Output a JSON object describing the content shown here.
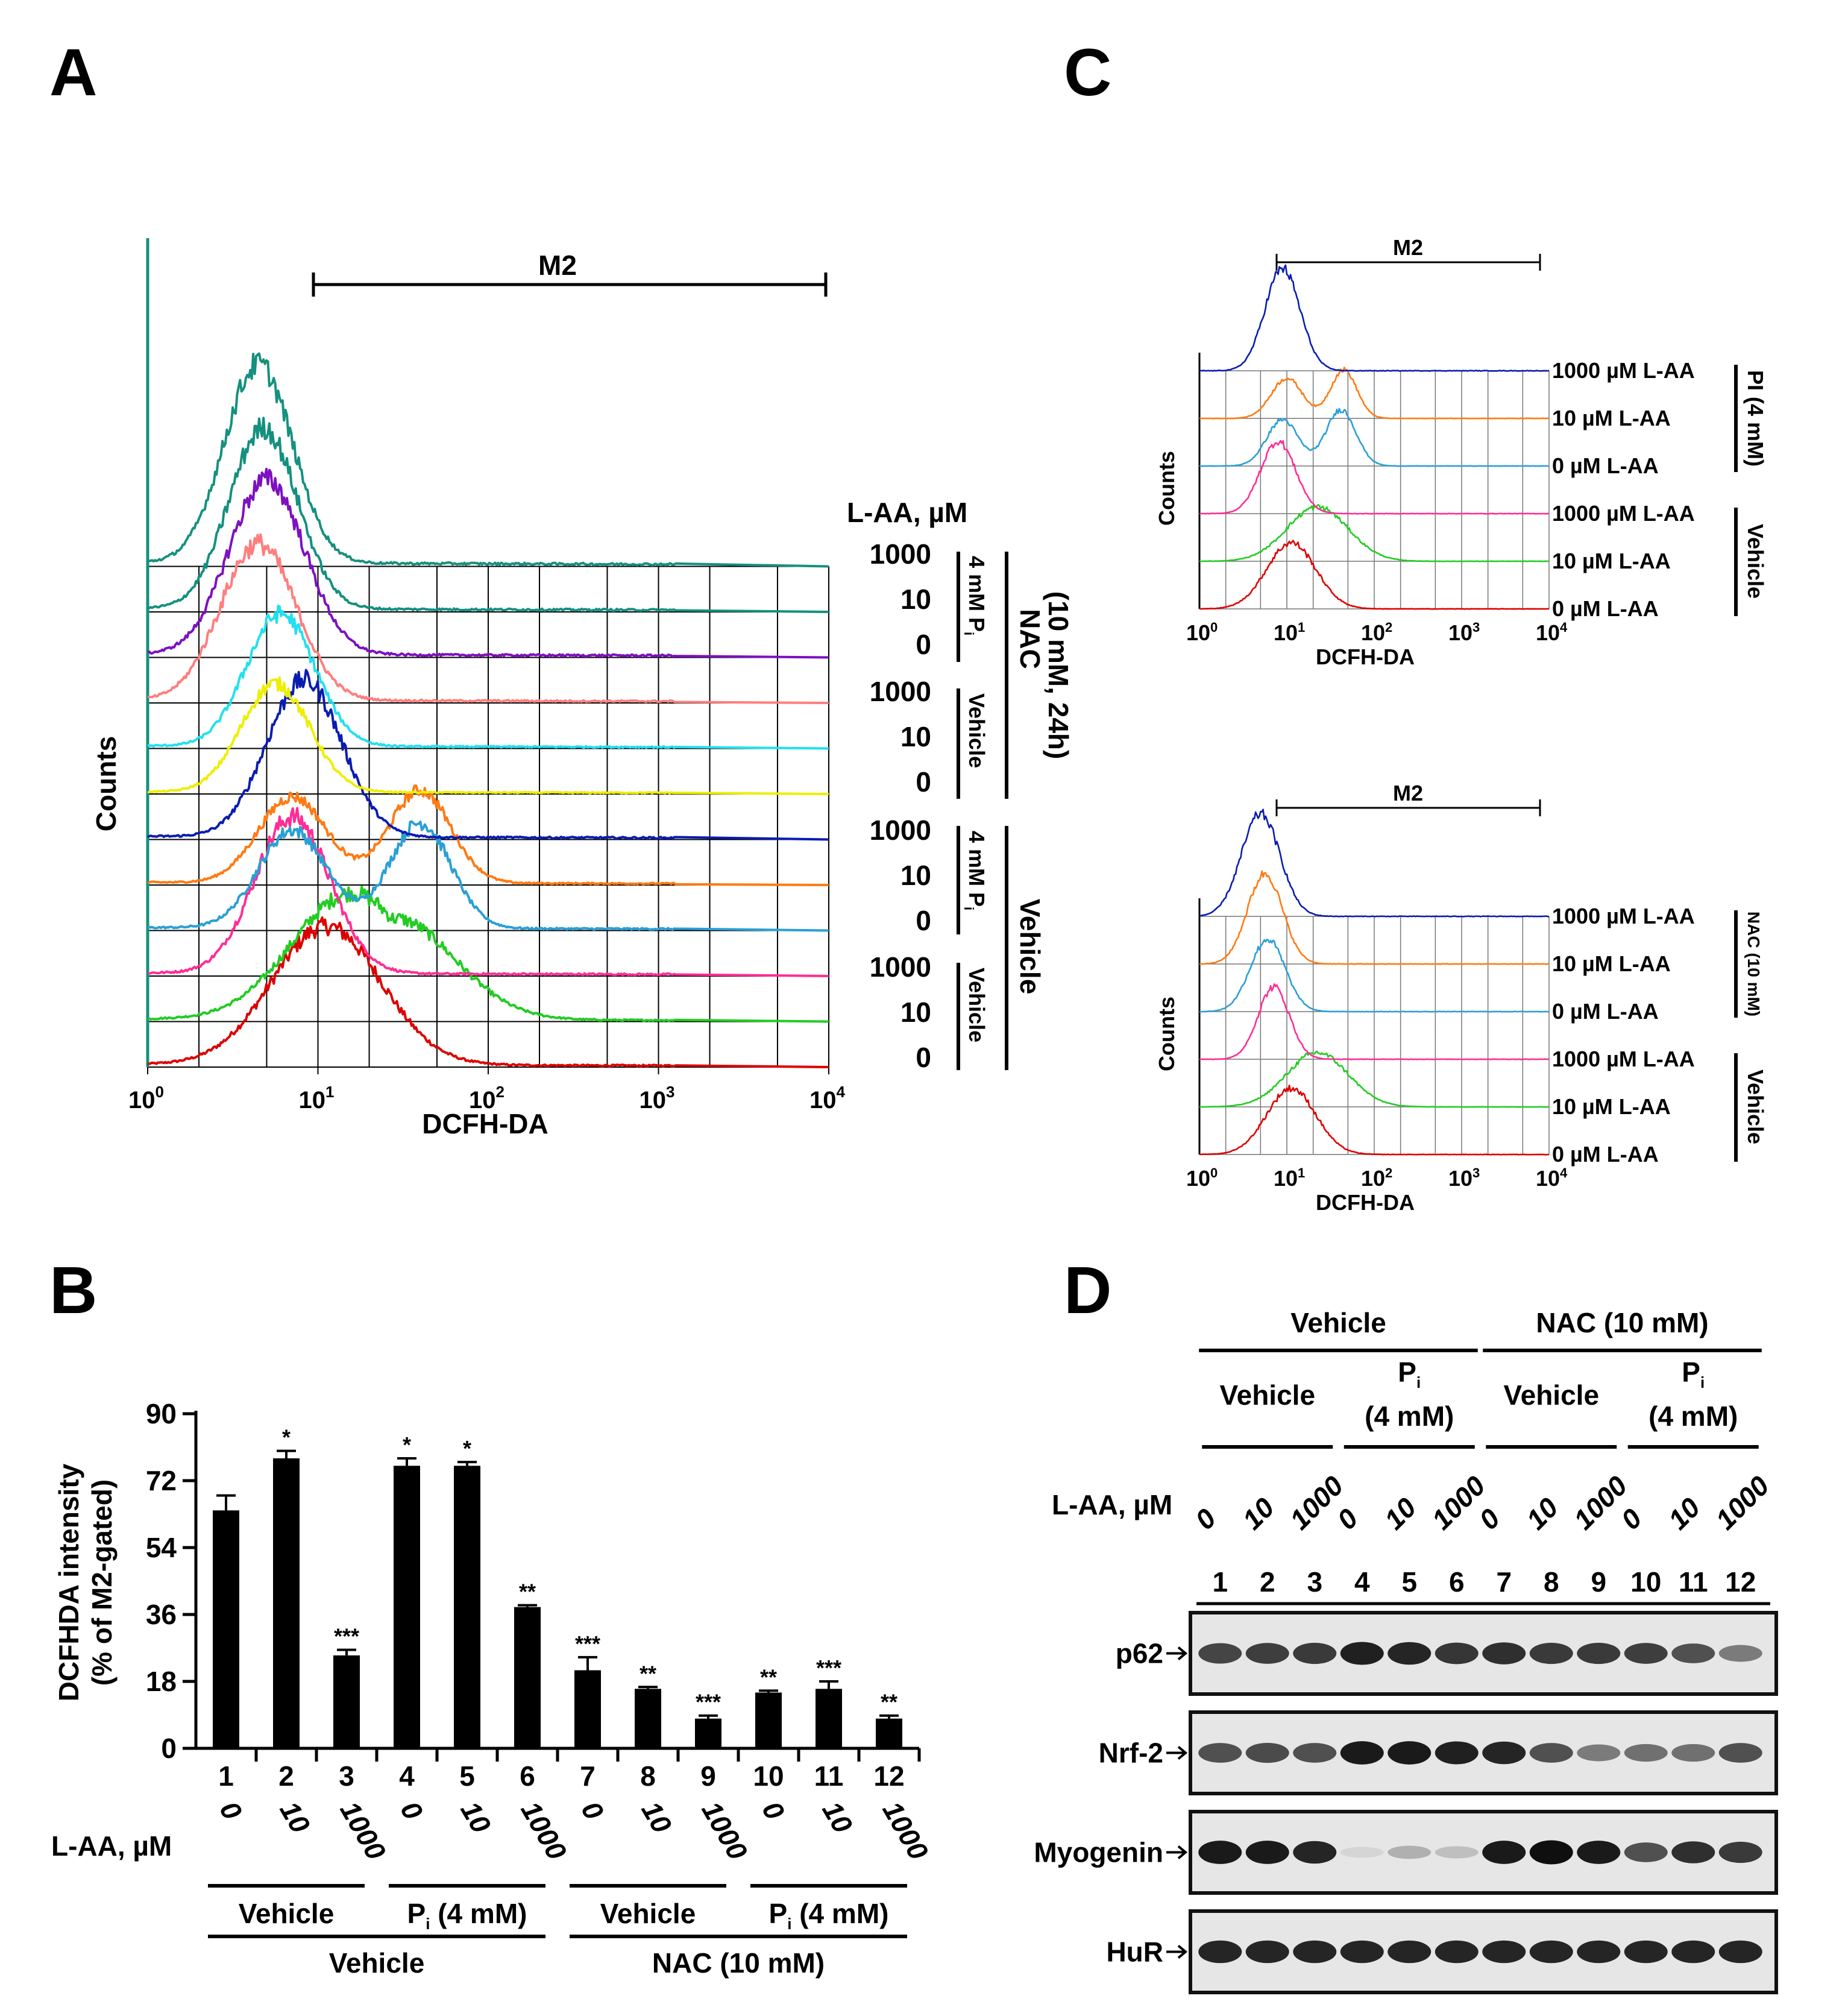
{
  "panels": {
    "a": "A",
    "b": "B",
    "c": "C",
    "d": "D"
  },
  "colors": [
    "#dd0000",
    "#22cc22",
    "#ff2d95",
    "#2a9fd6",
    "#ff7a12",
    "#0a1cb0",
    "#eeee00",
    "#22e0f0",
    "#ff7e7e",
    "#7d10c0",
    "#14907f",
    "#16907f"
  ],
  "panel_a": {
    "gate_label": "M2",
    "xlabel": "DCFH-DA",
    "ylabel": "Counts",
    "xticks": [
      {
        "base": "10",
        "exp": "0"
      },
      {
        "base": "10",
        "exp": "1"
      },
      {
        "base": "10",
        "exp": "2"
      },
      {
        "base": "10",
        "exp": "3"
      },
      {
        "base": "10",
        "exp": "4"
      }
    ],
    "laa_header": "L-AA, µM",
    "traces": [
      {
        "conc": "0",
        "color": "#dd0000",
        "peak": 1.05,
        "width": 0.32
      },
      {
        "conc": "10",
        "color": "#22cc22",
        "peak": 1.2,
        "width": 0.35
      },
      {
        "conc": "1000",
        "color": "#ff2d95",
        "peak": 0.85,
        "width": 0.22
      },
      {
        "conc": "0",
        "color": "#2a9fd6",
        "peak": 1.62,
        "width": 0.22
      },
      {
        "conc": "10",
        "color": "#ff7a12",
        "peak": 1.58,
        "width": 0.25
      },
      {
        "conc": "1000",
        "color": "#0a1cb0",
        "peak": 0.92,
        "width": 0.22
      },
      {
        "conc": "0",
        "color": "#eeee00",
        "peak": 0.75,
        "width": 0.2
      },
      {
        "conc": "10",
        "color": "#22e0f0",
        "peak": 0.78,
        "width": 0.2
      },
      {
        "conc": "1000",
        "color": "#ff7e7e",
        "peak": 0.65,
        "width": 0.22
      },
      {
        "conc": "0",
        "color": "#7d10c0",
        "peak": 0.7,
        "width": 0.22
      },
      {
        "conc": "10",
        "color": "#14907f",
        "peak": 0.68,
        "width": 0.2
      },
      {
        "conc": "1000",
        "color": "#16907f",
        "peak": 0.65,
        "width": 0.2
      }
    ],
    "group_labels": {
      "pi": "4 mM P",
      "pi_sub": "i",
      "vehicle": "Vehicle",
      "nac": "NAC",
      "nac_detail": "(10 mM, 24h)",
      "outer_vehicle": "Vehicle"
    }
  },
  "panel_c": {
    "gate_label": "M2",
    "xlabel": "DCFH-DA",
    "ylabel": "Counts",
    "xticks": [
      {
        "base": "10",
        "exp": "0"
      },
      {
        "base": "10",
        "exp": "1"
      },
      {
        "base": "10",
        "exp": "2"
      },
      {
        "base": "10",
        "exp": "3"
      },
      {
        "base": "10",
        "exp": "4"
      }
    ],
    "top_rows": [
      "1000 µM L-AA",
      "10 µM L-AA",
      "0 µM L-AA",
      "1000 µM L-AA",
      "10 µM L-AA",
      "0 µM L-AA"
    ],
    "top_groups": {
      "upper": "PI (4 mM)",
      "lower": "Vehicle"
    },
    "bottom_rows": [
      "1000 µM L-AA",
      "10 µM L-AA",
      "0 µM L-AA",
      "1000 µM L-AA",
      "10 µM L-AA",
      "0 µM L-AA"
    ],
    "bottom_groups": {
      "upper": "NAC (10 mM)",
      "lower": "Vehicle"
    }
  },
  "chart_data": {
    "type": "bar",
    "title": "",
    "ylabel": "DCFHDA intensity (% of M2-gated)",
    "xlabel": "L-AA, µM",
    "ylim": [
      0,
      90
    ],
    "yticks": [
      "0",
      "18",
      "36",
      "54",
      "72",
      "90"
    ],
    "categories": [
      "1",
      "2",
      "3",
      "4",
      "5",
      "6",
      "7",
      "8",
      "9",
      "10",
      "11",
      "12"
    ],
    "laa_conc": [
      "0",
      "10",
      "1000",
      "0",
      "10",
      "1000",
      "0",
      "10",
      "1000",
      "0",
      "10",
      "1000"
    ],
    "values": [
      64,
      78,
      25,
      76,
      76,
      38,
      21,
      16,
      8,
      15,
      16,
      8
    ],
    "errors": [
      4,
      2,
      1.5,
      2,
      1,
      0.5,
      3.5,
      0.5,
      0.8,
      0.5,
      2,
      0.8
    ],
    "significance": [
      "",
      "*",
      "***",
      "*",
      "*",
      "**",
      "***",
      "**",
      "***",
      "**",
      "***",
      "**"
    ],
    "group_row1": [
      {
        "label": "Vehicle"
      },
      {
        "label": "P",
        "sub": "i",
        "rest": " (4 mM)"
      },
      {
        "label": "Vehicle"
      },
      {
        "label": "P",
        "sub": "i",
        "rest": " (4 mM)"
      }
    ],
    "group_row2": [
      "Vehicle",
      "NAC (10 mM)"
    ]
  },
  "panel_d": {
    "top_groups": [
      "Vehicle",
      "NAC (10 mM)"
    ],
    "sub_groups": [
      {
        "label": "Vehicle"
      },
      {
        "label": "P",
        "sub": "i",
        "rest": "(4 mM)"
      },
      {
        "label": "Vehicle"
      },
      {
        "label": "P",
        "sub": "i",
        "rest": "(4 mM)"
      }
    ],
    "laa_header": "L-AA, µM",
    "conc": [
      "0",
      "10",
      "1000",
      "0",
      "10",
      "1000",
      "0",
      "10",
      "1000",
      "0",
      "10",
      "1000"
    ],
    "lanes": [
      "1",
      "2",
      "3",
      "4",
      "5",
      "6",
      "7",
      "8",
      "9",
      "10",
      "11",
      "12"
    ],
    "blots": [
      {
        "name": "p62",
        "intensity": [
          0.75,
          0.78,
          0.8,
          0.92,
          0.9,
          0.82,
          0.85,
          0.8,
          0.8,
          0.78,
          0.7,
          0.5
        ]
      },
      {
        "name": "Nrf-2",
        "intensity": [
          0.7,
          0.72,
          0.7,
          0.95,
          0.95,
          0.92,
          0.9,
          0.7,
          0.5,
          0.55,
          0.55,
          0.7
        ]
      },
      {
        "name": "Myogenin",
        "intensity": [
          0.95,
          0.95,
          0.9,
          0.08,
          0.25,
          0.18,
          0.95,
          1.0,
          0.95,
          0.7,
          0.85,
          0.8
        ]
      },
      {
        "name": "HuR",
        "intensity": [
          0.9,
          0.9,
          0.9,
          0.9,
          0.9,
          0.9,
          0.9,
          0.9,
          0.9,
          0.9,
          0.9,
          0.9
        ]
      }
    ]
  }
}
